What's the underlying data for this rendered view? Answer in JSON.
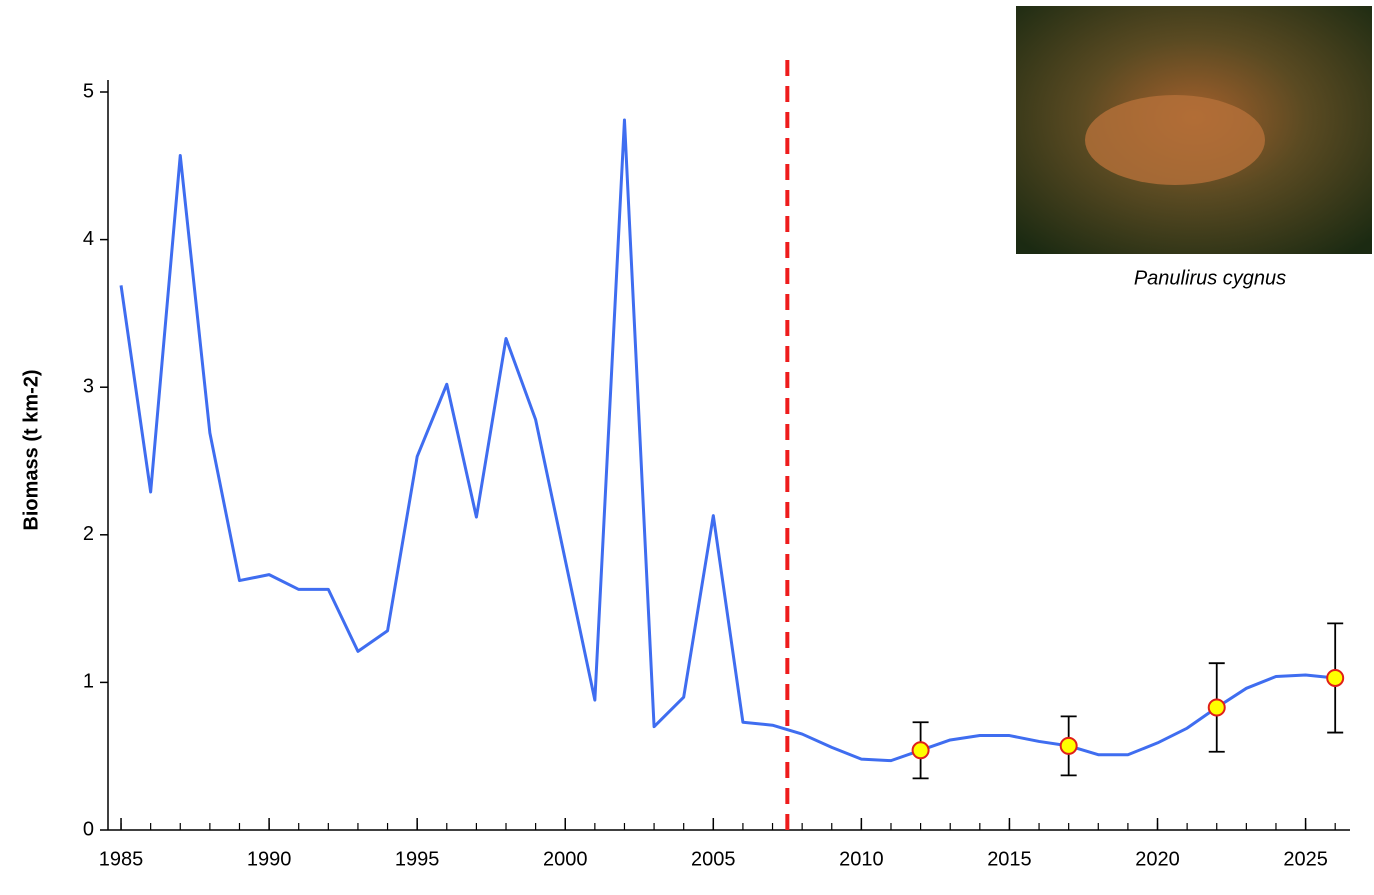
{
  "chart_data": {
    "type": "line",
    "ylabel": "Biomass (t km-2)",
    "caption": "Panulirus cygnus",
    "x": [
      1985,
      1986,
      1987,
      1988,
      1989,
      1990,
      1991,
      1992,
      1993,
      1994,
      1995,
      1996,
      1997,
      1998,
      1999,
      2000,
      2001,
      2002,
      2003,
      2004,
      2005,
      2006,
      2007,
      2008,
      2009,
      2010,
      2011,
      2012,
      2013,
      2014,
      2015,
      2016,
      2017,
      2018,
      2019,
      2020,
      2021,
      2022,
      2023,
      2024,
      2025,
      2026
    ],
    "series": [
      {
        "color": "#3f6df0",
        "values": [
          3.69,
          2.29,
          4.57,
          2.69,
          1.69,
          1.73,
          1.63,
          1.63,
          1.21,
          1.35,
          2.53,
          3.02,
          2.12,
          3.33,
          2.78,
          1.83,
          0.88,
          4.81,
          0.7,
          0.9,
          2.13,
          0.73,
          0.71,
          0.65,
          0.56,
          0.48,
          0.47,
          0.54,
          0.61,
          0.64,
          0.64,
          0.6,
          0.57,
          0.51,
          0.51,
          0.59,
          0.69,
          0.83,
          0.96,
          1.04,
          1.05,
          1.03
        ]
      }
    ],
    "points": {
      "color": "#ffff00",
      "edge": "#e0201a",
      "x": [
        2012,
        2017,
        2022,
        2026
      ],
      "values": [
        0.54,
        0.57,
        0.83,
        1.03
      ],
      "errors": [
        0.19,
        0.2,
        0.3,
        0.37
      ]
    },
    "vline": {
      "x": 2007.5,
      "color": "#ee1c1c"
    },
    "xlim": [
      1984.56,
      2026.5
    ],
    "xticks": [
      1985,
      1990,
      1995,
      2000,
      2005,
      2010,
      2015,
      2020,
      2025
    ],
    "ylim": [
      0,
      5
    ],
    "yticks": [
      0,
      1,
      2,
      3,
      4,
      5
    ]
  }
}
